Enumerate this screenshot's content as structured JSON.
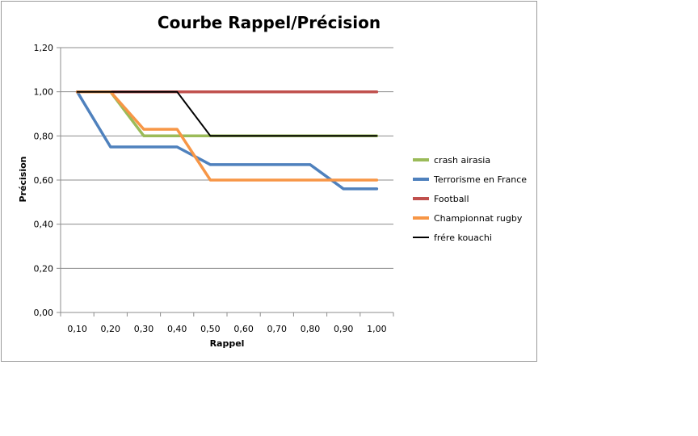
{
  "chart_data": {
    "type": "line",
    "title": "Courbe Rappel/Précision",
    "xlabel": "Rappel",
    "ylabel": "Précision",
    "categories": [
      "0,10",
      "0,20",
      "0,30",
      "0,40",
      "0,50",
      "0,60",
      "0,70",
      "0,80",
      "0,90",
      "1,00"
    ],
    "y_ticks": [
      "0,00",
      "0,20",
      "0,40",
      "0,60",
      "0,80",
      "1,00",
      "1,20"
    ],
    "ylim": [
      0,
      1.2
    ],
    "grid": true,
    "legend_position": "right",
    "series": [
      {
        "name": "crash airasia",
        "color": "#9bbb59",
        "values": [
          1.0,
          1.0,
          0.8,
          0.8,
          0.8,
          0.8,
          0.8,
          0.8,
          0.8,
          0.8
        ]
      },
      {
        "name": "Terrorisme en France",
        "color": "#4f81bd",
        "values": [
          1.0,
          0.75,
          0.75,
          0.75,
          0.67,
          0.67,
          0.67,
          0.67,
          0.56,
          0.56
        ]
      },
      {
        "name": "Football",
        "color": "#c0504d",
        "values": [
          1.0,
          1.0,
          1.0,
          1.0,
          1.0,
          1.0,
          1.0,
          1.0,
          1.0,
          1.0
        ]
      },
      {
        "name": "Championnat rugby",
        "color": "#f79646",
        "values": [
          1.0,
          1.0,
          0.83,
          0.83,
          0.6,
          0.6,
          0.6,
          0.6,
          0.6,
          0.6
        ]
      },
      {
        "name": "frére kouachi",
        "color": "#000000",
        "values": [
          1.0,
          1.0,
          1.0,
          1.0,
          0.8,
          0.8,
          0.8,
          0.8,
          0.8,
          0.8
        ]
      }
    ]
  }
}
